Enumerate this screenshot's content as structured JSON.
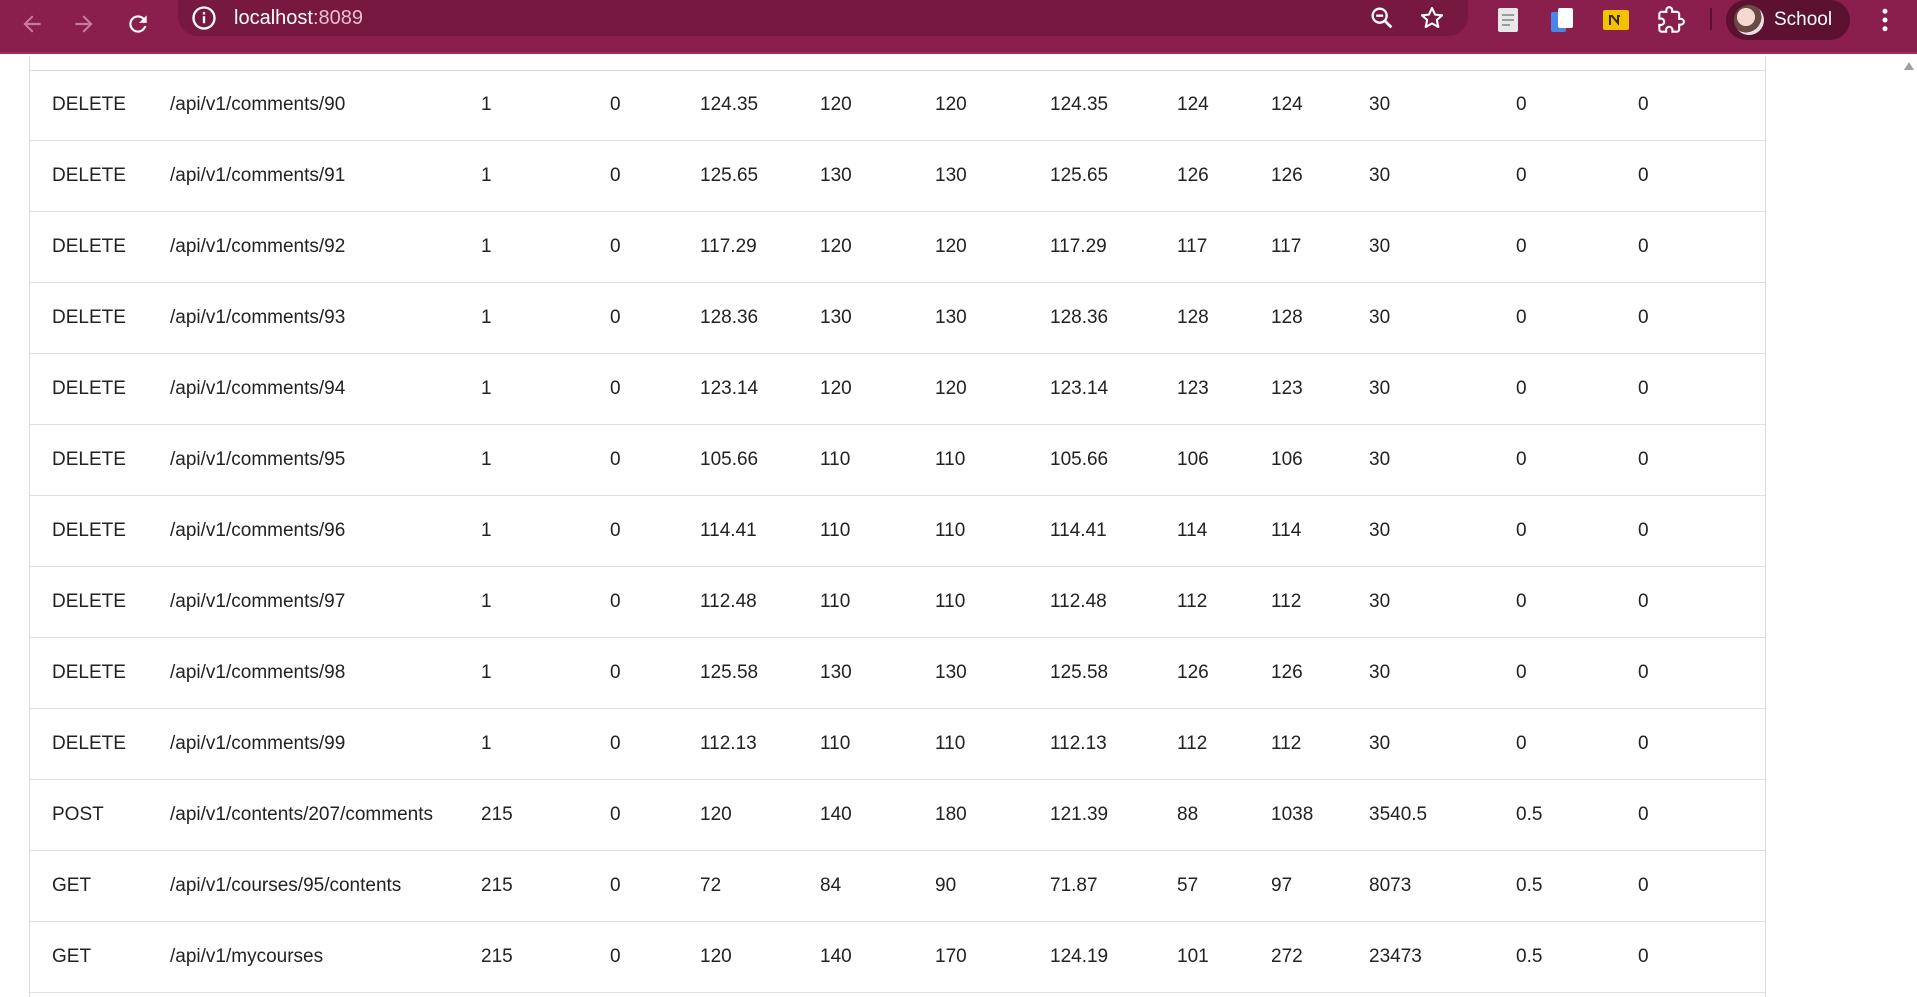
{
  "browser": {
    "url_host": "localhost",
    "url_port": ":8089",
    "profile_name": "School",
    "colors": {
      "toolbar": "#8a1e4c",
      "omnibox": "#761840",
      "profile_pill": "#5c1131"
    },
    "icons": [
      "back-icon",
      "forward-icon",
      "reload-icon",
      "site-info-icon",
      "zoom-icon",
      "bookmark-star-icon",
      "document-icon",
      "copy-icon",
      "extension-n-icon",
      "extensions-puzzle-icon",
      "avatar",
      "kebab-menu-icon"
    ]
  },
  "table": {
    "rows": [
      [
        "DELETE",
        "/api/v1/comments/90",
        "1",
        "0",
        "124.35",
        "120",
        "120",
        "124.35",
        "124",
        "124",
        "30",
        "0",
        "0"
      ],
      [
        "DELETE",
        "/api/v1/comments/91",
        "1",
        "0",
        "125.65",
        "130",
        "130",
        "125.65",
        "126",
        "126",
        "30",
        "0",
        "0"
      ],
      [
        "DELETE",
        "/api/v1/comments/92",
        "1",
        "0",
        "117.29",
        "120",
        "120",
        "117.29",
        "117",
        "117",
        "30",
        "0",
        "0"
      ],
      [
        "DELETE",
        "/api/v1/comments/93",
        "1",
        "0",
        "128.36",
        "130",
        "130",
        "128.36",
        "128",
        "128",
        "30",
        "0",
        "0"
      ],
      [
        "DELETE",
        "/api/v1/comments/94",
        "1",
        "0",
        "123.14",
        "120",
        "120",
        "123.14",
        "123",
        "123",
        "30",
        "0",
        "0"
      ],
      [
        "DELETE",
        "/api/v1/comments/95",
        "1",
        "0",
        "105.66",
        "110",
        "110",
        "105.66",
        "106",
        "106",
        "30",
        "0",
        "0"
      ],
      [
        "DELETE",
        "/api/v1/comments/96",
        "1",
        "0",
        "114.41",
        "110",
        "110",
        "114.41",
        "114",
        "114",
        "30",
        "0",
        "0"
      ],
      [
        "DELETE",
        "/api/v1/comments/97",
        "1",
        "0",
        "112.48",
        "110",
        "110",
        "112.48",
        "112",
        "112",
        "30",
        "0",
        "0"
      ],
      [
        "DELETE",
        "/api/v1/comments/98",
        "1",
        "0",
        "125.58",
        "130",
        "130",
        "125.58",
        "126",
        "126",
        "30",
        "0",
        "0"
      ],
      [
        "DELETE",
        "/api/v1/comments/99",
        "1",
        "0",
        "112.13",
        "110",
        "110",
        "112.13",
        "112",
        "112",
        "30",
        "0",
        "0"
      ],
      [
        "POST",
        "/api/v1/contents/207/comments",
        "215",
        "0",
        "120",
        "140",
        "180",
        "121.39",
        "88",
        "1038",
        "3540.5",
        "0.5",
        "0"
      ],
      [
        "GET",
        "/api/v1/courses/95/contents",
        "215",
        "0",
        "72",
        "84",
        "90",
        "71.87",
        "57",
        "97",
        "8073",
        "0.5",
        "0"
      ],
      [
        "GET",
        "/api/v1/mycourses",
        "215",
        "0",
        "120",
        "140",
        "170",
        "124.19",
        "101",
        "272",
        "23473",
        "0.5",
        "0"
      ]
    ]
  }
}
